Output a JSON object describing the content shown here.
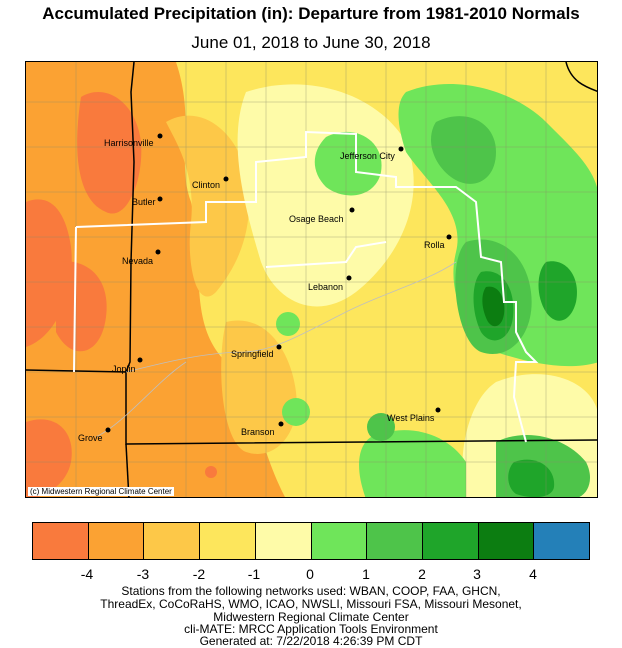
{
  "header": {
    "title": "Accumulated Precipitation (in): Departure from 1981-2010 Normals",
    "subtitle": "June 01, 2018 to June 30, 2018"
  },
  "map": {
    "credit": "(c) Midwestern Regional Climate Center",
    "cities": [
      {
        "name": "Harrisonville"
      },
      {
        "name": "Jefferson City"
      },
      {
        "name": "Clinton"
      },
      {
        "name": "Butler"
      },
      {
        "name": "Osage Beach"
      },
      {
        "name": "Rolla"
      },
      {
        "name": "Nevada"
      },
      {
        "name": "Lebanon"
      },
      {
        "name": "Springfield"
      },
      {
        "name": "Joplin"
      },
      {
        "name": "West Plains"
      },
      {
        "name": "Branson"
      },
      {
        "name": "Grove"
      }
    ]
  },
  "legend": {
    "colors": [
      "#f97a3d",
      "#fba233",
      "#fdc848",
      "#fde65c",
      "#fefba8",
      "#6fe55a",
      "#4ec44a",
      "#1fa52a",
      "#0c7d11",
      "#2480b8"
    ],
    "ticks": [
      "-4",
      "-3",
      "-2",
      "-1",
      "0",
      "1",
      "2",
      "3",
      "4"
    ]
  },
  "footer": {
    "line1": "Stations from the following networks used: WBAN, COOP, FAA, GHCN,",
    "line2": "ThreadEx, CoCoRaHS, WMO, ICAO, NWSLI, Missouri FSA, Missouri Mesonet,",
    "line3": "Midwestern Regional Climate Center",
    "line4": "cli-MATE: MRCC Application Tools Environment",
    "line5": "Generated at: 7/22/2018 4:26:39 PM CDT"
  }
}
